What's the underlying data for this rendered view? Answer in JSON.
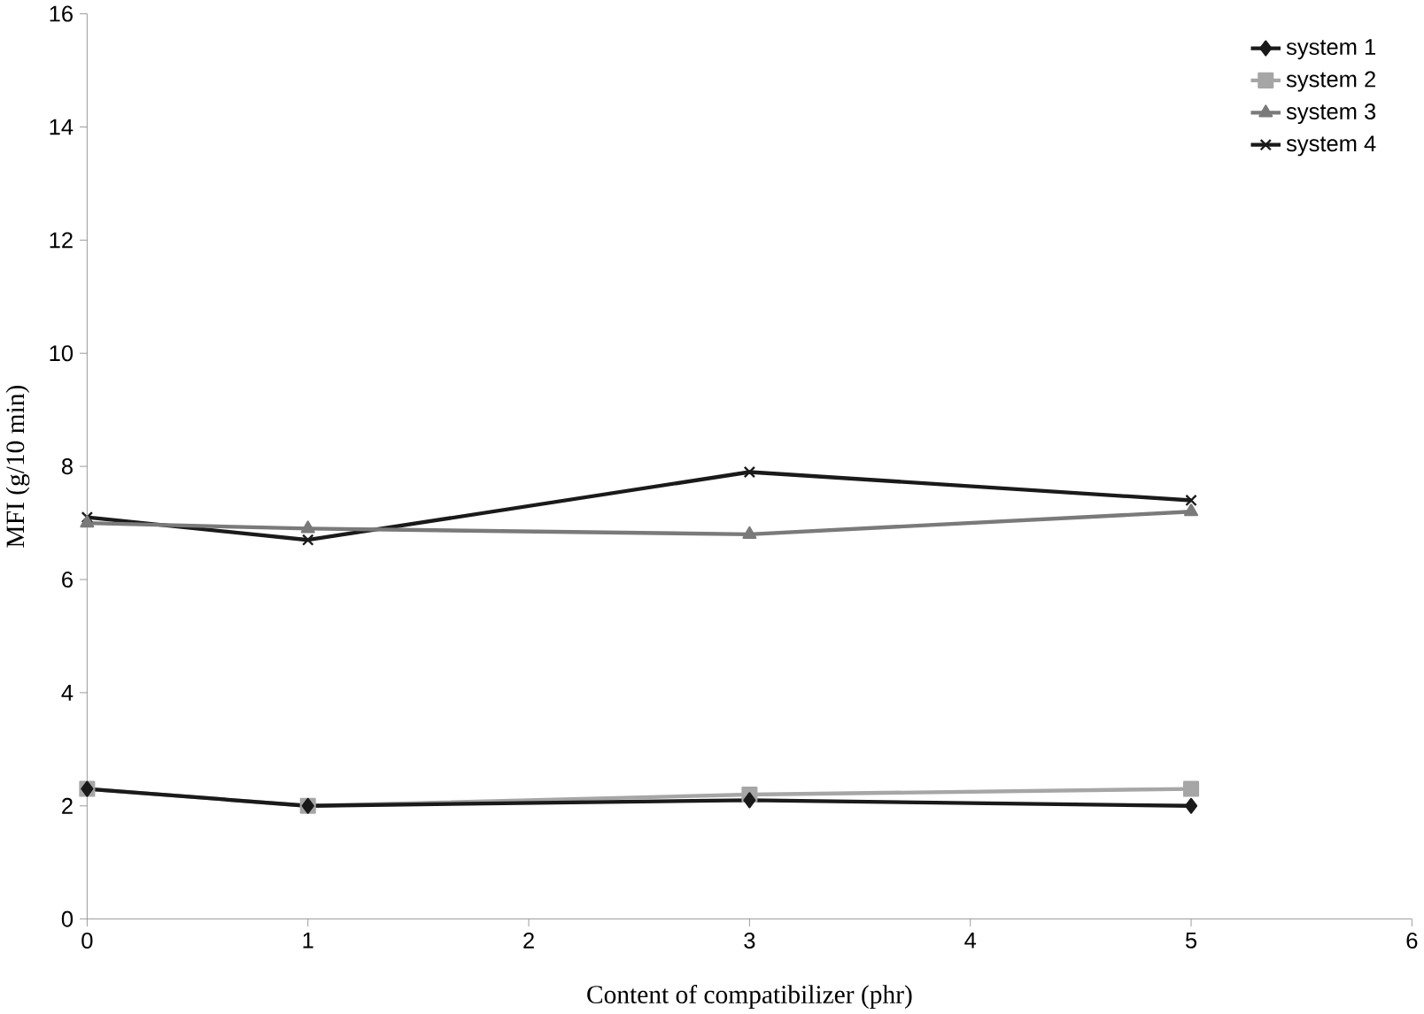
{
  "chart_data": {
    "type": "line",
    "xlabel": "Content of compatibilizer (phr)",
    "ylabel": "MFI (g/10 min)",
    "x": [
      0,
      1,
      3,
      5
    ],
    "series": [
      {
        "name": "system 1",
        "color": "#1a1a1a",
        "marker": "diamond",
        "values": [
          2.3,
          2.0,
          2.1,
          2.0
        ]
      },
      {
        "name": "system 2",
        "color": "#a6a6a6",
        "marker": "square",
        "values": [
          2.3,
          2.0,
          2.2,
          2.3
        ]
      },
      {
        "name": "system 3",
        "color": "#7a7a7a",
        "marker": "triangle",
        "values": [
          7.0,
          6.9,
          6.8,
          7.2
        ]
      },
      {
        "name": "system 4",
        "color": "#1a1a1a",
        "marker": "cross",
        "values": [
          7.1,
          6.7,
          7.9,
          7.4
        ]
      }
    ],
    "xlim": [
      0,
      6
    ],
    "xticks": [
      0,
      1,
      2,
      3,
      4,
      5,
      6
    ],
    "ylim": [
      0,
      16
    ],
    "yticks": [
      0,
      2,
      4,
      6,
      8,
      10,
      12,
      14,
      16
    ],
    "legend": "top right",
    "grid": false,
    "line_style": "solid"
  }
}
